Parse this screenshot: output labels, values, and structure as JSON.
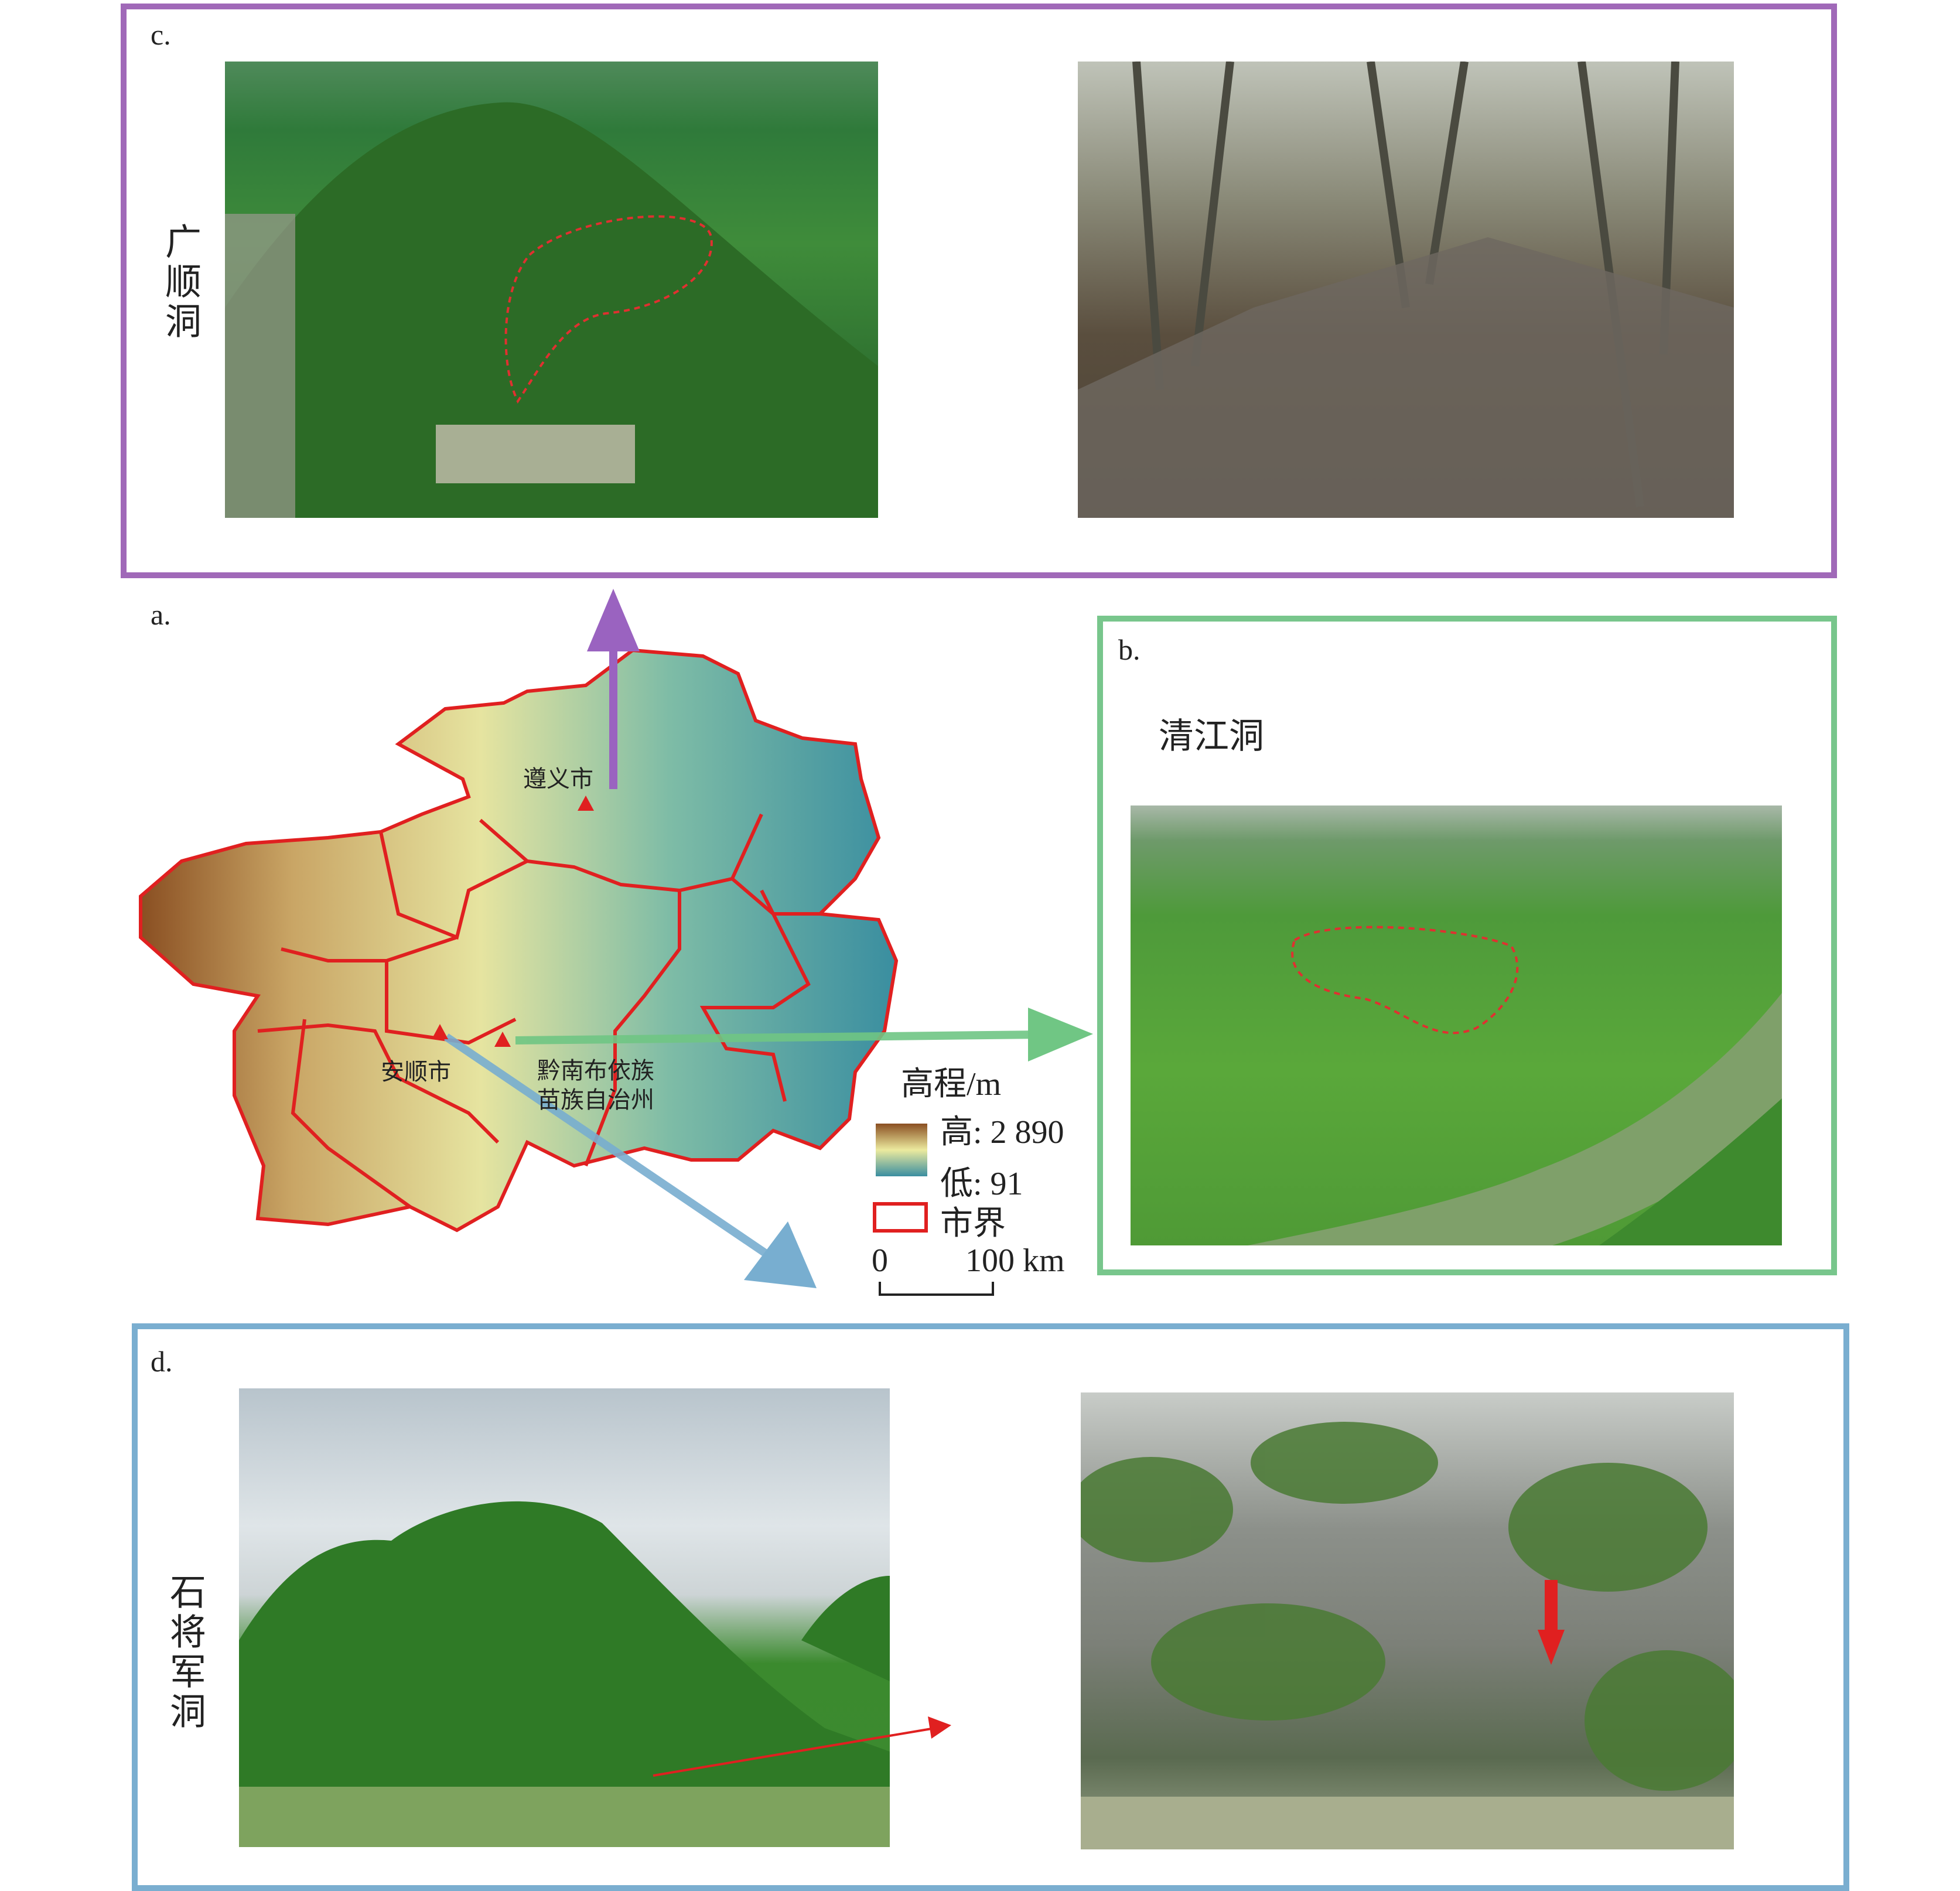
{
  "colors": {
    "panel_c": "#a069b8",
    "panel_b": "#78c68c",
    "panel_d": "#7aaed0",
    "boundary": "#e02020",
    "marker": "#e02020"
  },
  "panel_c": {
    "label": "c.",
    "site_name": "广顺洞"
  },
  "panel_a": {
    "label": "a.",
    "cities": [
      "遵义市",
      "安顺市",
      "黔南布依族",
      "苗族自治州"
    ],
    "legend": {
      "title": "高程/m",
      "high": "高: 2 890",
      "low": "低: 91",
      "boundary": "市界"
    },
    "scale_bar": {
      "start": "0",
      "end": "100 km"
    }
  },
  "panel_b": {
    "label": "b.",
    "site_name": "清江洞"
  },
  "panel_d": {
    "label": "d.",
    "site_name": "石将军洞"
  }
}
